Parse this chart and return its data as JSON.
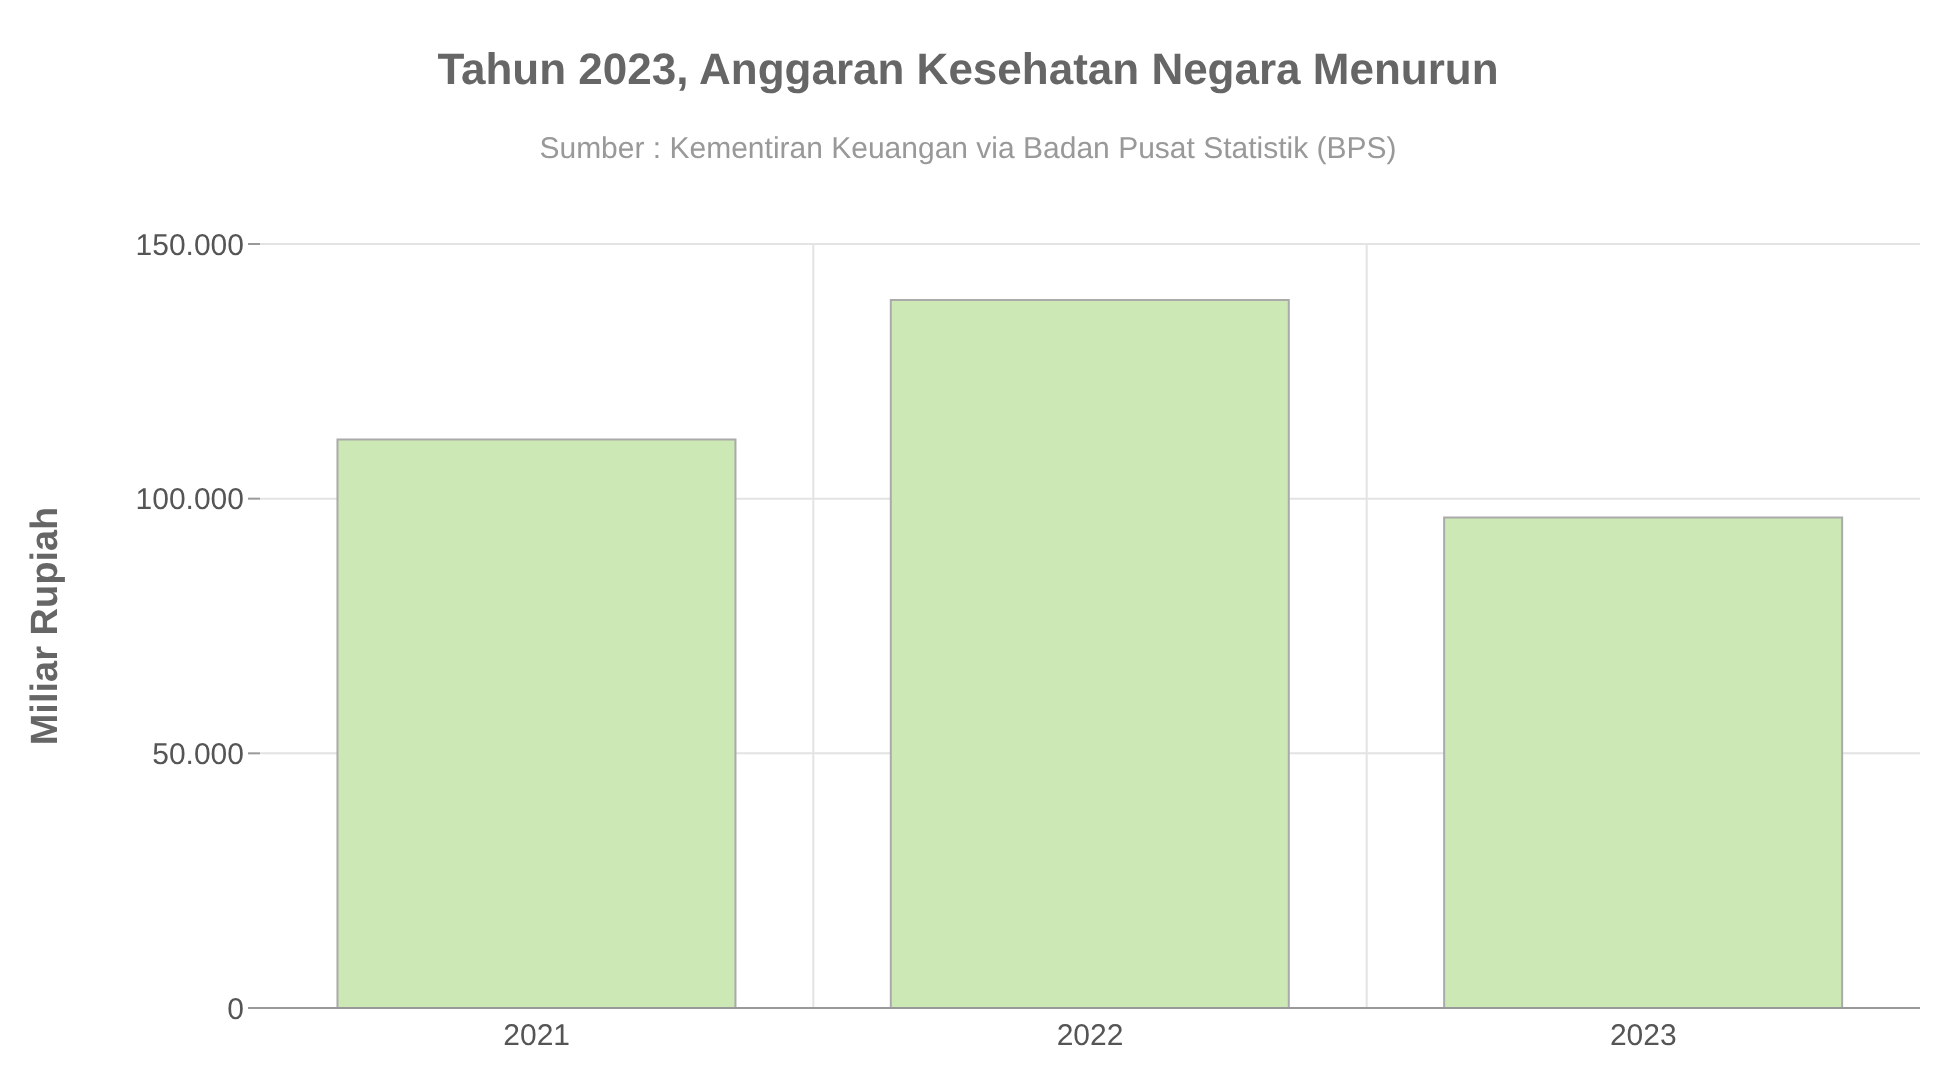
{
  "chart_data": {
    "type": "bar",
    "title": "Tahun 2023, Anggaran Kesehatan Negara Menurun",
    "subtitle": "Sumber : Kementiran Keuangan via Badan Pusat Statistik (BPS)",
    "ylabel": "Miliar Rupiah",
    "categories": [
      "2021",
      "2022",
      "2023"
    ],
    "values": [
      111600,
      139000,
      96300
    ],
    "color": "#cce8b5",
    "ylim": [
      0,
      150000
    ],
    "yticks": [
      {
        "value": 0,
        "label": "0"
      },
      {
        "value": 50000,
        "label": "50.000"
      },
      {
        "value": 100000,
        "label": "100.000"
      },
      {
        "value": 150000,
        "label": "150.000"
      }
    ],
    "grid": true
  }
}
